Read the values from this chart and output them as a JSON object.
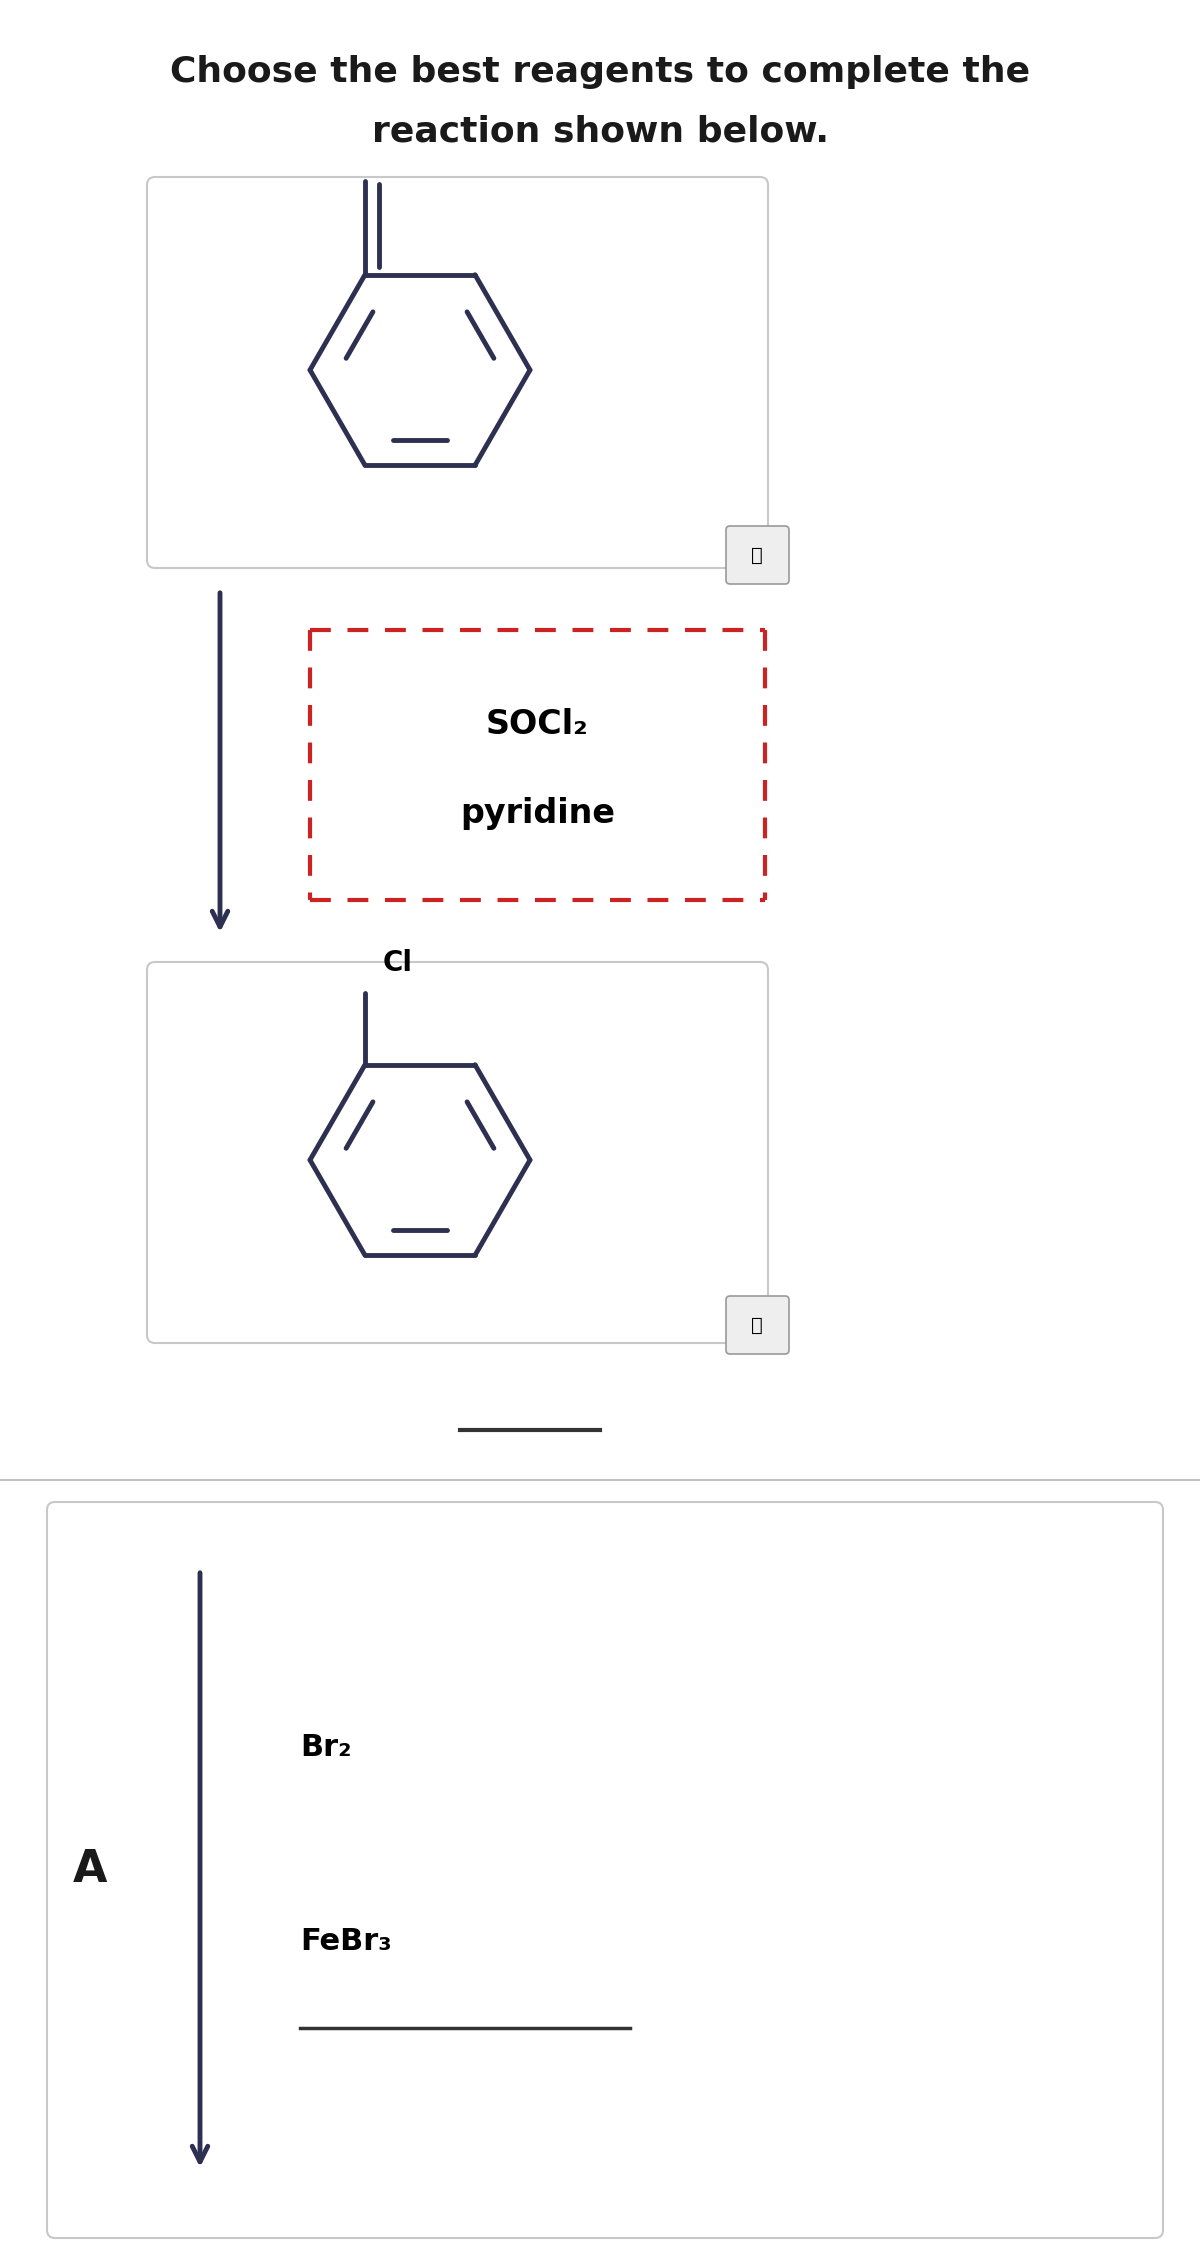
{
  "title_line1": "Choose the best reagents to complete the",
  "title_line2": "reaction shown below.",
  "title_fontsize": 26,
  "title_fontweight": "bold",
  "background_color": "#f5f5f5",
  "ring_color": "#2d3050",
  "reagent_text1": "SOCl₂",
  "reagent_text2": "pyridine",
  "reagent_fontsize": 24,
  "answer_label": "A",
  "answer_text1": "Br₂",
  "answer_text2": "FeBr₃",
  "cl_label": "Cl",
  "answer_fontsize": 22
}
